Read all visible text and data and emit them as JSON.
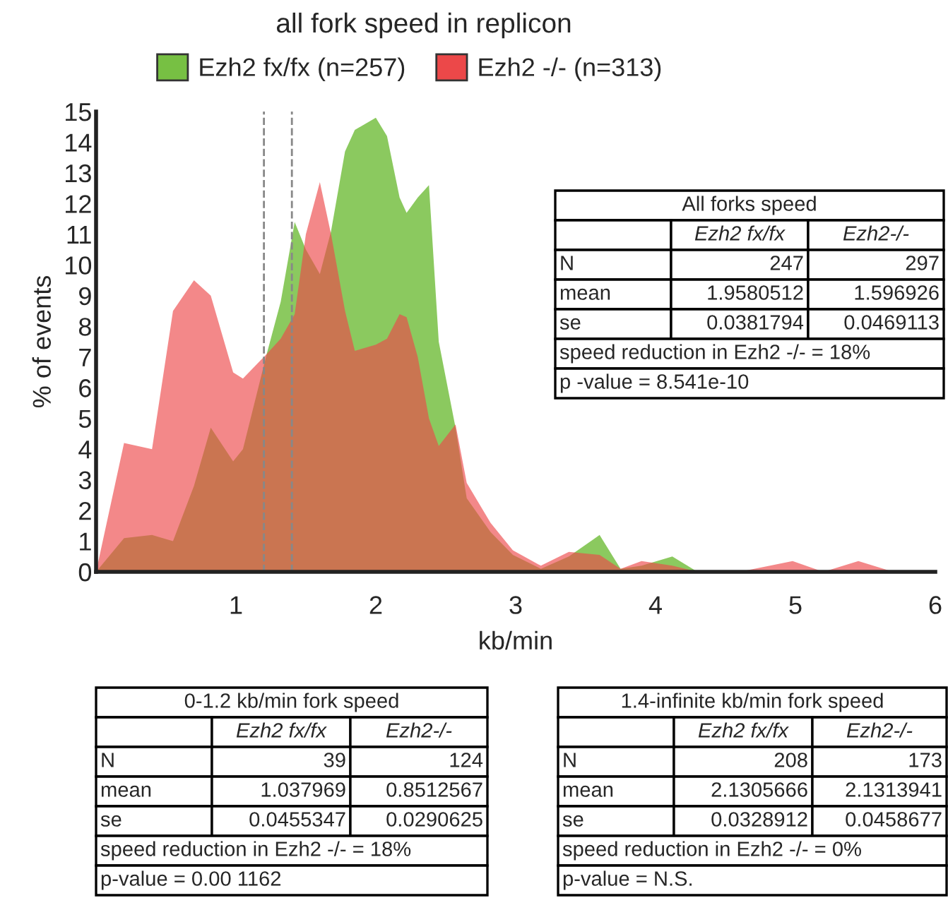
{
  "chart_data": {
    "type": "area",
    "title": "all fork speed in replicon",
    "xlabel": "kb/min",
    "ylabel": "% of events",
    "x": [
      0,
      0.2,
      0.4,
      0.55,
      0.7,
      0.82,
      0.98,
      1.05,
      1.22,
      1.32,
      1.42,
      1.5,
      1.6,
      1.68,
      1.78,
      1.85,
      2.0,
      2.08,
      2.17,
      2.22,
      2.3,
      2.38,
      2.45,
      2.57,
      2.65,
      2.82,
      2.98,
      3.18,
      3.38,
      3.6,
      3.75,
      3.9,
      4.12,
      4.3,
      4.6,
      4.98,
      5.2,
      5.45,
      5.7
    ],
    "series": [
      {
        "name": "Ezh2 fx/fx (n=257)",
        "color": "#77c043",
        "values": [
          0,
          1.1,
          1.2,
          1.0,
          2.8,
          4.7,
          3.6,
          4.0,
          7.1,
          8.8,
          11.4,
          10.5,
          9.7,
          11.1,
          13.7,
          14.4,
          14.8,
          14.2,
          12.2,
          11.7,
          12.2,
          12.6,
          7.5,
          4.7,
          2.4,
          1.3,
          0.55,
          0.1,
          0.5,
          1.2,
          0.1,
          0.2,
          0.5,
          0,
          0,
          0,
          0,
          0,
          0
        ]
      },
      {
        "name": "Ezh2 -/- (n=313)",
        "color": "#ec4849",
        "values": [
          0,
          4.2,
          4.0,
          8.5,
          9.5,
          9.0,
          6.5,
          6.3,
          7.1,
          7.6,
          8.4,
          11.0,
          12.7,
          11.0,
          8.5,
          7.2,
          7.4,
          7.6,
          8.4,
          8.3,
          7.0,
          5.0,
          4.1,
          4.8,
          2.9,
          1.6,
          0.7,
          0.2,
          0.65,
          0.55,
          0.1,
          0.35,
          0.2,
          0,
          0,
          0.35,
          0,
          0.35,
          0
        ]
      }
    ],
    "xlim": [
      0,
      6
    ],
    "xticks": [
      1,
      2,
      3,
      4,
      5,
      6
    ],
    "ylim": [
      0,
      15
    ],
    "yticks": [
      0,
      1,
      2,
      3,
      4,
      5,
      6,
      7,
      8,
      9,
      10,
      11,
      12,
      13,
      14,
      15
    ],
    "ref_lines": [
      {
        "axis": "x",
        "value": 1.2,
        "color": "#888888",
        "line_style": "dashed"
      },
      {
        "axis": "x",
        "value": 1.4,
        "color": "#888888",
        "line_style": "dashed"
      }
    ],
    "legend": "top",
    "grid": false,
    "annotations": [
      "All forks speed",
      "Ezh2 fx/fx",
      "Ezh2-/-",
      "N",
      "247",
      "297",
      "mean",
      "1.9580512",
      "1.596926",
      "se",
      "0.0381794",
      "0.0469113",
      "speed reduction in Ezh2 -/- = 18%",
      "p -value = 8.541e-10",
      "0-1.2 kb/min fork speed",
      "Ezh2 fx/fx",
      "Ezh2-/-",
      "N",
      "39",
      "124",
      "mean",
      "1.037969",
      "0.8512567",
      "se",
      "0.0455347",
      "0.0290625",
      "speed reduction in Ezh2 -/- = 18%",
      "p-value = 0.00 1162",
      "1.4-infinite kb/min fork speed",
      "Ezh2 fx/fx",
      "Ezh2-/-",
      "N",
      "208",
      "173",
      "mean",
      "2.1305666",
      "2.1313941",
      "se",
      "0.0328912",
      "0.0458677",
      "speed reduction in Ezh2 -/- = 0%",
      "p-value = N.S."
    ]
  }
}
